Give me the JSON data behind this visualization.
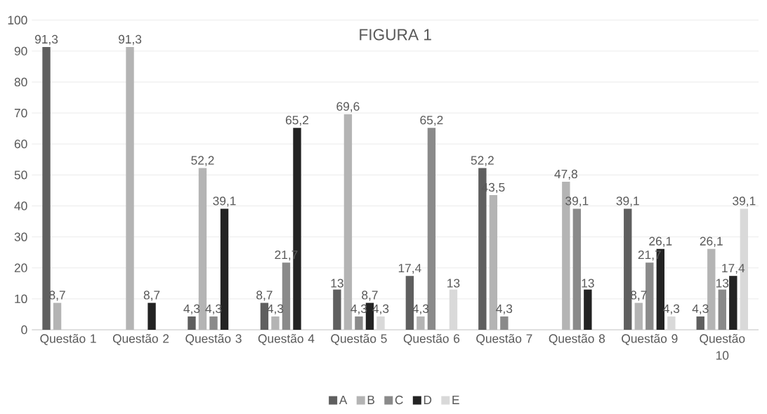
{
  "chart_data": {
    "type": "bar",
    "title": "FIGURA 1",
    "categories": [
      "Questão 1",
      "Questão 2",
      "Questão 3",
      "Questão 4",
      "Questão 5",
      "Questão 6",
      "Questão 7",
      "Questão 8",
      "Questão 9",
      "Questão 10"
    ],
    "series": [
      {
        "name": "A",
        "color": "#5f5f5f",
        "values": [
          91.3,
          null,
          4.3,
          8.7,
          13,
          17.4,
          52.2,
          null,
          39.1,
          4.3
        ],
        "value_labels": [
          "91,3",
          null,
          "4,3",
          "8,7",
          "13",
          "17,4",
          "52,2",
          null,
          "39,1",
          "4,3"
        ]
      },
      {
        "name": "B",
        "color": "#b4b4b4",
        "values": [
          8.7,
          91.3,
          52.2,
          4.3,
          69.6,
          4.3,
          43.5,
          47.8,
          8.7,
          26.1
        ],
        "value_labels": [
          "8,7",
          "91,3",
          "52,2",
          "4,3",
          "69,6",
          "4,3",
          "43,5",
          "47,8",
          "8,7",
          "26,1"
        ]
      },
      {
        "name": "C",
        "color": "#8a8a8a",
        "values": [
          null,
          null,
          4.3,
          21.7,
          4.3,
          65.2,
          4.3,
          39.1,
          21.7,
          13
        ],
        "value_labels": [
          null,
          null,
          "4,3",
          "21,7",
          "4,3",
          "65,2",
          "4,3",
          "39,1",
          "21,7",
          "13"
        ]
      },
      {
        "name": "D",
        "color": "#232323",
        "values": [
          null,
          8.7,
          39.1,
          65.2,
          8.7,
          null,
          null,
          13,
          26.1,
          17.4
        ],
        "value_labels": [
          null,
          "8,7",
          "39,1",
          "65,2",
          "8,7",
          null,
          null,
          "13",
          "26,1",
          "17,4"
        ]
      },
      {
        "name": "E",
        "color": "#d9d9d9",
        "values": [
          null,
          null,
          null,
          null,
          4.3,
          13,
          null,
          null,
          4.3,
          39.1
        ],
        "value_labels": [
          null,
          null,
          null,
          null,
          "4,3",
          "13",
          null,
          null,
          "4,3",
          "39,1"
        ]
      }
    ],
    "ylim": [
      0,
      100
    ],
    "yticks": [
      0,
      10,
      20,
      30,
      40,
      50,
      60,
      70,
      80,
      90,
      100
    ],
    "grid": "y",
    "legend": "bottom"
  }
}
